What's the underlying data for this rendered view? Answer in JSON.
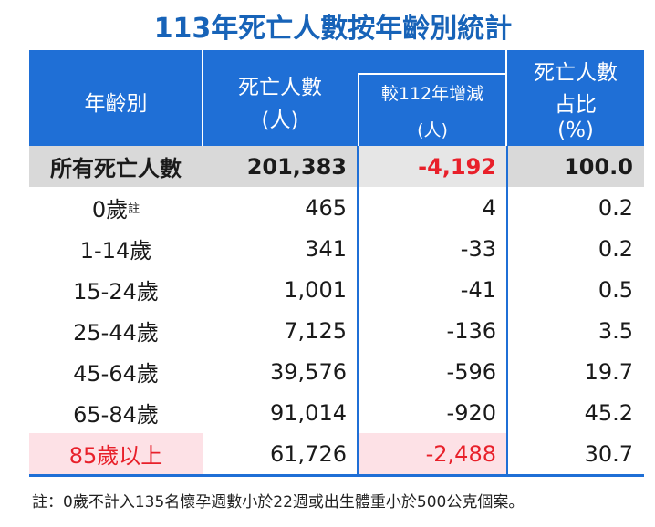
{
  "title": "113年死亡人數按年齡別統計",
  "header": {
    "age": "年齡別",
    "deaths": [
      "死亡人數",
      "(人)"
    ],
    "change": [
      "較112年增減",
      "(人)"
    ],
    "share": [
      "死亡人數",
      "占比",
      "(%)"
    ]
  },
  "table": {
    "rows": [
      {
        "label": "所有死亡人數",
        "deaths": "201,383",
        "change": "-4,192",
        "share": "100.0"
      },
      {
        "label": "0歲",
        "note": "註",
        "deaths": "465",
        "change": "4",
        "share": "0.2"
      },
      {
        "label": "1-14歲",
        "deaths": "341",
        "change": "-33",
        "share": "0.2"
      },
      {
        "label": "15-24歲",
        "deaths": "1,001",
        "change": "-41",
        "share": "0.5"
      },
      {
        "label": "25-44歲",
        "deaths": "7,125",
        "change": "-136",
        "share": "3.5"
      },
      {
        "label": "45-64歲",
        "deaths": "39,576",
        "change": "-596",
        "share": "19.7"
      },
      {
        "label": "65-84歲",
        "deaths": "91,014",
        "change": "-920",
        "share": "45.2"
      },
      {
        "label": "85歲以上",
        "deaths": "61,726",
        "change": "-2,488",
        "share": "30.7"
      }
    ]
  },
  "footnote": "註：0歲不計入135名懷孕週數小於22週或出生體重小於500公克個案。"
}
